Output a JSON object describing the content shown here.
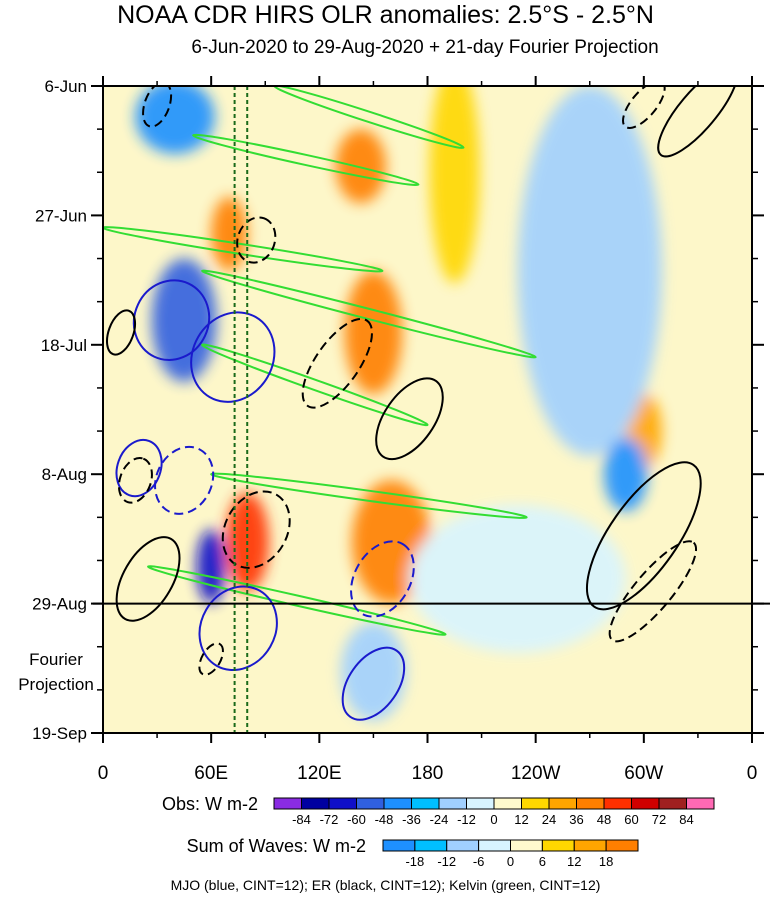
{
  "chart_data": {
    "type": "heatmap",
    "title": "NOAA CDR HIRS OLR anomalies: 2.5°S - 2.5°N",
    "subtitle": "6-Jun-2020 to 29-Aug-2020 + 21-day Fourier Projection",
    "y_tick_labels": [
      "6-Jun",
      "27-Jun",
      "18-Jul",
      "8-Aug",
      "29-Aug",
      "19-Sep"
    ],
    "y_tick_days": [
      0,
      21,
      42,
      63,
      84,
      105
    ],
    "x_tick_labels": [
      "0",
      "60E",
      "120E",
      "180",
      "120W",
      "60W",
      "0"
    ],
    "x_tick_lon": [
      0,
      60,
      120,
      180,
      240,
      300,
      360
    ],
    "xlim": [
      0,
      360
    ],
    "ylim_days": [
      0,
      105
    ],
    "observed_end_day": 84,
    "projection_label": [
      "Fourier",
      "Projection"
    ],
    "mjo_region_lon": [
      73,
      80
    ],
    "obs_colorbar": {
      "label": "Obs: W m-2",
      "levels": [
        "-84",
        "-72",
        "-60",
        "-48",
        "-36",
        "-24",
        "-12",
        "0",
        "12",
        "24",
        "36",
        "48",
        "60",
        "72",
        "84"
      ],
      "colors": [
        "#8a2be2",
        "#0000a0",
        "#1010c8",
        "#3060e0",
        "#1e90ff",
        "#00bfff",
        "#a0d0ff",
        "#d8f4ff",
        "#fffacd",
        "#ffd700",
        "#ffa500",
        "#ff7f00",
        "#ff3000",
        "#d00000",
        "#a02020",
        "#ff69b4"
      ]
    },
    "waves_colorbar": {
      "label": "Sum of Waves: W m-2",
      "levels": [
        "-18",
        "-12",
        "-6",
        "0",
        "6",
        "12",
        "18"
      ],
      "colors": [
        "#1e90ff",
        "#00bfff",
        "#a0d0ff",
        "#d8f4ff",
        "#fffacd",
        "#ffd700",
        "#ffa500",
        "#ff7f00"
      ]
    },
    "contour_legend": "MJO (blue, CINT=12); ER (black, CINT=12); Kelvin (green, CINT=12)",
    "series": [
      {
        "name": "Kelvin",
        "color": "#33dd33",
        "bands": [
          {
            "lon0": 95,
            "day0": 0,
            "lon1": 200,
            "day1": 10
          },
          {
            "lon0": 50,
            "day0": 8,
            "lon1": 175,
            "day1": 16
          },
          {
            "lon0": 0,
            "day0": 23,
            "lon1": 155,
            "day1": 30
          },
          {
            "lon0": 55,
            "day0": 30,
            "lon1": 240,
            "day1": 44
          },
          {
            "lon0": 55,
            "day0": 42,
            "lon1": 180,
            "day1": 55
          },
          {
            "lon0": 60,
            "day0": 63,
            "lon1": 235,
            "day1": 70
          },
          {
            "lon0": 25,
            "day0": 78,
            "lon1": 190,
            "day1": 89
          }
        ]
      },
      {
        "name": "MJO",
        "color": "#1a1acc",
        "ellipses": [
          {
            "lon": 38,
            "day": 38,
            "rx_deg": 14,
            "ry_days": 12,
            "rot": -65,
            "dash": false
          },
          {
            "lon": 72,
            "day": 44,
            "rx_deg": 16,
            "ry_days": 13,
            "rot": -60,
            "dash": false
          },
          {
            "lon": 20,
            "day": 62,
            "rx_deg": 10,
            "ry_days": 7,
            "rot": -70,
            "dash": false
          },
          {
            "lon": 45,
            "day": 64,
            "rx_deg": 12,
            "ry_days": 9,
            "rot": -65,
            "dash": true
          },
          {
            "lon": 75,
            "day": 88,
            "rx_deg": 15,
            "ry_days": 12,
            "rot": -60,
            "dash": false
          },
          {
            "lon": 150,
            "day": 97,
            "rx_deg": 14,
            "ry_days": 8,
            "rot": -55,
            "dash": false
          },
          {
            "lon": 155,
            "day": 80,
            "rx_deg": 14,
            "ry_days": 9,
            "rot": -60,
            "dash": true
          }
        ]
      },
      {
        "name": "ER",
        "color": "#000000",
        "ellipses": [
          {
            "lon": 30,
            "day": 3,
            "rx_deg": 8,
            "ry_days": 4,
            "rot": -70,
            "dash": true
          },
          {
            "lon": 330,
            "day": 4,
            "rx_deg": 20,
            "ry_days": 6,
            "rot": -50,
            "dash": false
          },
          {
            "lon": 300,
            "day": 3,
            "rx_deg": 10,
            "ry_days": 4,
            "rot": -50,
            "dash": true
          },
          {
            "lon": 85,
            "day": 25,
            "rx_deg": 8,
            "ry_days": 6,
            "rot": -70,
            "dash": true
          },
          {
            "lon": 10,
            "day": 40,
            "rx_deg": 8,
            "ry_days": 4,
            "rot": -70,
            "dash": false
          },
          {
            "lon": 130,
            "day": 45,
            "rx_deg": 18,
            "ry_days": 7,
            "rot": -55,
            "dash": true
          },
          {
            "lon": 170,
            "day": 54,
            "rx_deg": 16,
            "ry_days": 8,
            "rot": -55,
            "dash": false
          },
          {
            "lon": 18,
            "day": 64,
            "rx_deg": 8,
            "ry_days": 5,
            "rot": -70,
            "dash": true
          },
          {
            "lon": 25,
            "day": 80,
            "rx_deg": 16,
            "ry_days": 8,
            "rot": -60,
            "dash": false
          },
          {
            "lon": 85,
            "day": 72,
            "rx_deg": 14,
            "ry_days": 10,
            "rot": -60,
            "dash": true
          },
          {
            "lon": 300,
            "day": 73,
            "rx_deg": 30,
            "ry_days": 11,
            "rot": -55,
            "dash": false
          },
          {
            "lon": 305,
            "day": 82,
            "rx_deg": 22,
            "ry_days": 6,
            "rot": -50,
            "dash": true
          },
          {
            "lon": 60,
            "day": 93,
            "rx_deg": 6,
            "ry_days": 3,
            "rot": -60,
            "dash": true
          }
        ]
      }
    ],
    "anomaly_blobs": [
      {
        "lon": 143,
        "day": 13,
        "r_deg": 14,
        "r_days": 6,
        "value": 48
      },
      {
        "lon": 70,
        "day": 24,
        "r_deg": 10,
        "r_days": 6,
        "value": 48
      },
      {
        "lon": 150,
        "day": 40,
        "r_deg": 16,
        "r_days": 10,
        "value": 48
      },
      {
        "lon": 80,
        "day": 74,
        "r_deg": 12,
        "r_days": 8,
        "value": 60
      },
      {
        "lon": 160,
        "day": 74,
        "r_deg": 22,
        "r_days": 10,
        "value": 48
      },
      {
        "lon": 300,
        "day": 56,
        "r_deg": 10,
        "r_days": 6,
        "value": 36
      },
      {
        "lon": 195,
        "day": 14,
        "r_deg": 14,
        "r_days": 18,
        "value": 24
      },
      {
        "lon": 45,
        "day": 38,
        "r_deg": 18,
        "r_days": 10,
        "value": -48
      },
      {
        "lon": 40,
        "day": 5,
        "r_deg": 22,
        "r_days": 6,
        "value": -36
      },
      {
        "lon": 60,
        "day": 78,
        "r_deg": 8,
        "r_days": 6,
        "value": -60
      },
      {
        "lon": 150,
        "day": 95,
        "r_deg": 18,
        "r_days": 8,
        "value": -12
      },
      {
        "lon": 270,
        "day": 30,
        "r_deg": 40,
        "r_days": 30,
        "value": -12
      },
      {
        "lon": 230,
        "day": 80,
        "r_deg": 60,
        "r_days": 12,
        "value": -6
      },
      {
        "lon": 290,
        "day": 63,
        "r_deg": 12,
        "r_days": 6,
        "value": -36
      }
    ]
  }
}
